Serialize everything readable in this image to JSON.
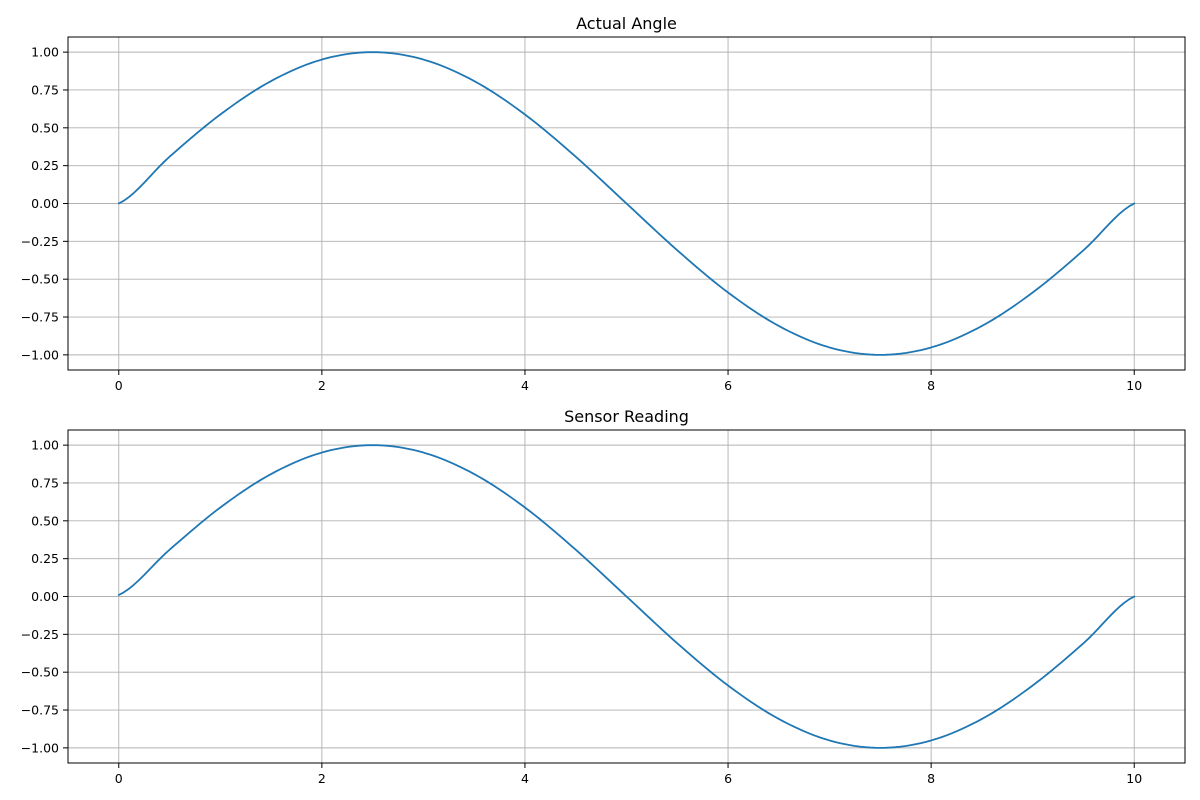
{
  "chart_data": [
    {
      "type": "line",
      "title": "Actual Angle",
      "xlabel": "",
      "ylabel": "",
      "xlim": [
        -0.5,
        10.5
      ],
      "ylim": [
        -1.1,
        1.1
      ],
      "xticks": [
        0,
        2,
        4,
        6,
        8,
        10
      ],
      "yticks": [
        1.0,
        0.75,
        0.5,
        0.25,
        0.0,
        -0.25,
        -0.5,
        -0.75,
        -1.0
      ],
      "xtick_labels": [
        "0",
        "2",
        "4",
        "6",
        "8",
        "10"
      ],
      "ytick_labels": [
        "1.00",
        "0.75",
        "0.50",
        "0.25",
        "0.00",
        "−0.25",
        "−0.50",
        "−0.75",
        "−1.00"
      ],
      "grid": true,
      "color": "#1f77b4",
      "series": [
        {
          "x": [
            0,
            0.5,
            1,
            1.5,
            2,
            2.5,
            3,
            3.5,
            4,
            4.5,
            5,
            5.5,
            6,
            6.5,
            7,
            7.5,
            8,
            8.5,
            9,
            9.5,
            10
          ],
          "y": [
            0.0,
            0.309,
            0.588,
            0.809,
            0.951,
            1.0,
            0.951,
            0.809,
            0.588,
            0.309,
            0.0,
            -0.309,
            -0.588,
            -0.809,
            -0.951,
            -1.0,
            -0.951,
            -0.809,
            -0.588,
            -0.309,
            0.0
          ]
        }
      ]
    },
    {
      "type": "line",
      "title": "Sensor Reading",
      "xlabel": "",
      "ylabel": "",
      "xlim": [
        -0.5,
        10.5
      ],
      "ylim": [
        -1.1,
        1.1
      ],
      "xticks": [
        0,
        2,
        4,
        6,
        8,
        10
      ],
      "yticks": [
        1.0,
        0.75,
        0.5,
        0.25,
        0.0,
        -0.25,
        -0.5,
        -0.75,
        -1.0
      ],
      "xtick_labels": [
        "0",
        "2",
        "4",
        "6",
        "8",
        "10"
      ],
      "ytick_labels": [
        "1.00",
        "0.75",
        "0.50",
        "0.25",
        "0.00",
        "−0.25",
        "−0.50",
        "−0.75",
        "−1.00"
      ],
      "grid": true,
      "color": "#1f77b4",
      "series": [
        {
          "x": [
            0,
            0.5,
            1,
            1.5,
            2,
            2.5,
            3,
            3.5,
            4,
            4.5,
            5,
            5.5,
            6,
            6.5,
            7,
            7.5,
            8,
            8.5,
            9,
            9.5,
            10
          ],
          "y": [
            0.01,
            0.309,
            0.588,
            0.809,
            0.951,
            1.0,
            0.951,
            0.809,
            0.588,
            0.309,
            0.0,
            -0.309,
            -0.588,
            -0.809,
            -0.951,
            -1.0,
            -0.951,
            -0.809,
            -0.588,
            -0.309,
            0.0
          ]
        }
      ]
    }
  ]
}
